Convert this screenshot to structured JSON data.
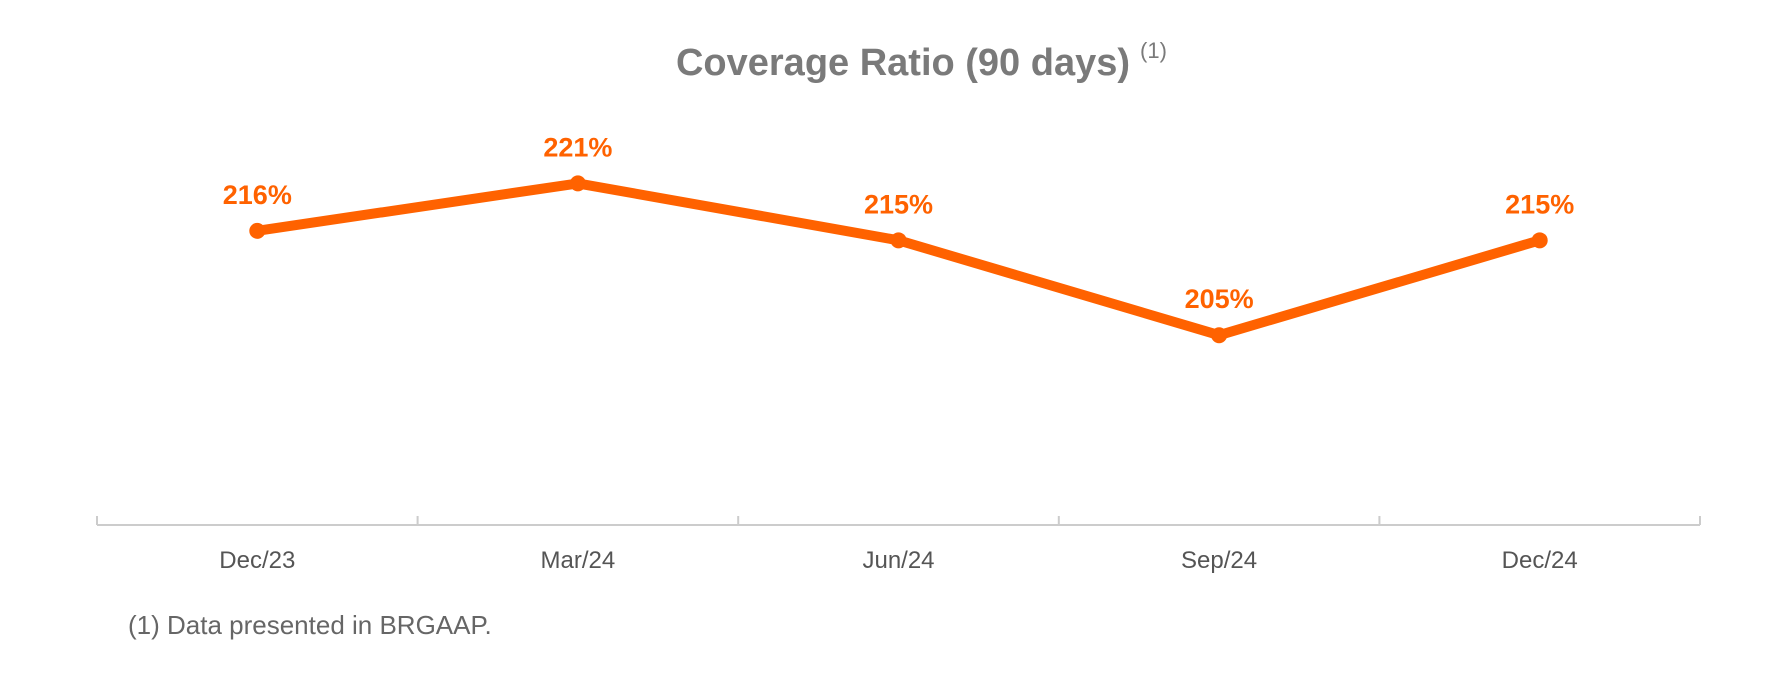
{
  "colors": {
    "line": "#FF6200",
    "title": "#7a7a7a",
    "tick_text": "#555555",
    "axis": "#cccccc",
    "footnote": "#666666"
  },
  "chart_data": {
    "type": "line",
    "title": "Coverage Ratio (90 days)",
    "title_note": "(1)",
    "categories": [
      "Dec/23",
      "Mar/24",
      "Jun/24",
      "Sep/24",
      "Dec/24"
    ],
    "series": [
      {
        "name": "Coverage Ratio (90 days)",
        "values": [
          216,
          221,
          215,
          205,
          215
        ],
        "labels": [
          "216%",
          "221%",
          "215%",
          "205%",
          "215%"
        ]
      }
    ],
    "value_unit": "%",
    "xlabel": "",
    "ylabel": "",
    "ylim": [
      185,
      230
    ],
    "grid": false,
    "legend": "none"
  },
  "footnote": "(1) Data presented in BRGAAP."
}
